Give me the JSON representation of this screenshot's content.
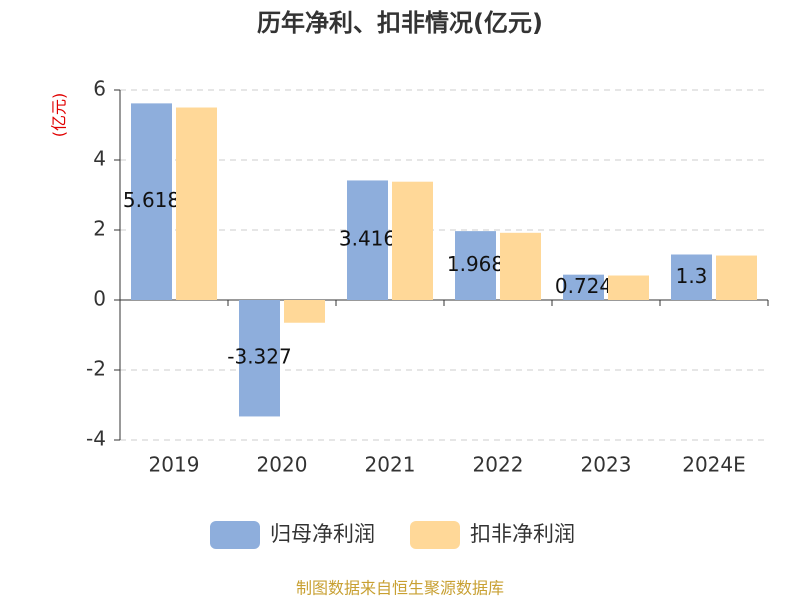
{
  "chart_data": {
    "type": "bar",
    "title": "历年净利、扣非情况(亿元)",
    "y_label": "(亿元)",
    "categories": [
      "2019",
      "2020",
      "2021",
      "2022",
      "2023",
      "2024E"
    ],
    "series": [
      {
        "name": "归母净利润",
        "color": "#8eaedc",
        "values": [
          5.618,
          -3.327,
          3.416,
          1.968,
          0.724,
          1.3
        ]
      },
      {
        "name": "扣非净利润",
        "color": "#ffd898",
        "values": [
          5.5,
          -0.65,
          3.38,
          1.92,
          0.7,
          1.27
        ]
      }
    ],
    "ylim": [
      -4,
      6
    ],
    "yticks": [
      -4,
      -2,
      0,
      2,
      4,
      6
    ],
    "grid": true,
    "footer": "制图数据来自恒生聚源数据库"
  }
}
